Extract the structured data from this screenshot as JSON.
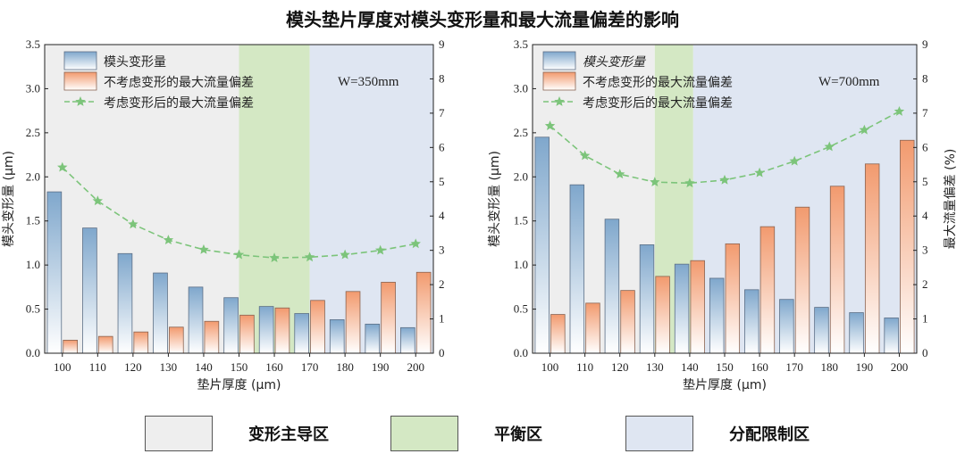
{
  "title": "模头垫片厚度对模头变形量和最大流量偏差的影响",
  "colors": {
    "zone_dominant": "#eeeeee",
    "zone_balance": "#d4e8c4",
    "zone_limit": "#dfe6f2",
    "bar_deform_top": "#7fa7cc",
    "bar_dev_top": "#f29a6e",
    "line": "#7cc47a"
  },
  "zone_legend": [
    {
      "label": "变形主导区"
    },
    {
      "label": "平衡区"
    },
    {
      "label": "分配限制区"
    }
  ],
  "chart_data": [
    {
      "type": "bar",
      "annotation": "W=350mm",
      "xlabel": "垫片厚度 (μm)",
      "ylabel": "模头变形量 (μm)",
      "y2label": "",
      "x": [
        100,
        110,
        120,
        130,
        140,
        150,
        160,
        170,
        180,
        190,
        200
      ],
      "ylim": [
        0,
        3.5
      ],
      "y2lim": [
        0,
        9
      ],
      "yticks": [
        "0.0",
        "0.5",
        "1.0",
        "1.5",
        "2.0",
        "2.5",
        "3.0",
        "3.5"
      ],
      "y2ticks": [
        "0",
        "1",
        "2",
        "3",
        "4",
        "5",
        "6",
        "7",
        "8",
        "9"
      ],
      "zones": [
        {
          "name": "变形主导区",
          "from": 95,
          "to": 150
        },
        {
          "name": "平衡区",
          "from": 150,
          "to": 170
        },
        {
          "name": "分配限制区",
          "from": 170,
          "to": 205
        }
      ],
      "legend_italic": false,
      "series": [
        {
          "name": "模头变形量",
          "axis": "left",
          "kind": "bar",
          "values": [
            1.83,
            1.42,
            1.13,
            0.91,
            0.75,
            0.63,
            0.53,
            0.45,
            0.38,
            0.33,
            0.29
          ]
        },
        {
          "name": "不考虑变形的最大流量偏差",
          "axis": "right",
          "kind": "bar",
          "values": [
            0.38,
            0.49,
            0.62,
            0.76,
            0.93,
            1.11,
            1.32,
            1.54,
            1.8,
            2.07,
            2.36
          ]
        },
        {
          "name": "考虑变形后的最大流量偏差",
          "axis": "right",
          "kind": "line",
          "values": [
            5.42,
            4.44,
            3.76,
            3.3,
            3.02,
            2.87,
            2.78,
            2.8,
            2.87,
            3.0,
            3.19
          ]
        }
      ]
    },
    {
      "type": "bar",
      "annotation": "W=700mm",
      "xlabel": "垫片厚度 (μm)",
      "ylabel": "模头变形量 (μm)",
      "y2label": "最大流量偏差 (%)",
      "x": [
        100,
        110,
        120,
        130,
        140,
        150,
        160,
        170,
        180,
        190,
        200
      ],
      "ylim": [
        0,
        3.5
      ],
      "y2lim": [
        0,
        9
      ],
      "yticks": [
        "0.0",
        "0.5",
        "1.0",
        "1.5",
        "2.0",
        "2.5",
        "3.0",
        "3.5"
      ],
      "y2ticks": [
        "0",
        "1",
        "2",
        "3",
        "4",
        "5",
        "6",
        "7",
        "8",
        "9"
      ],
      "zones": [
        {
          "name": "变形主导区",
          "from": 95,
          "to": 130
        },
        {
          "name": "平衡区",
          "from": 130,
          "to": 141
        },
        {
          "name": "分配限制区",
          "from": 141,
          "to": 205
        }
      ],
      "legend_italic": true,
      "series": [
        {
          "name": "模头变形量",
          "axis": "left",
          "kind": "bar",
          "values": [
            2.45,
            1.91,
            1.52,
            1.23,
            1.01,
            0.85,
            0.72,
            0.61,
            0.52,
            0.46,
            0.4
          ]
        },
        {
          "name": "不考虑变形的最大流量偏差",
          "axis": "right",
          "kind": "bar",
          "values": [
            1.13,
            1.46,
            1.83,
            2.24,
            2.7,
            3.19,
            3.69,
            4.26,
            4.87,
            5.52,
            6.21
          ]
        },
        {
          "name": "考虑变形后的最大流量偏差",
          "axis": "right",
          "kind": "line",
          "values": [
            6.63,
            5.76,
            5.22,
            4.99,
            4.96,
            5.05,
            5.26,
            5.6,
            6.02,
            6.51,
            7.05
          ]
        }
      ]
    }
  ]
}
